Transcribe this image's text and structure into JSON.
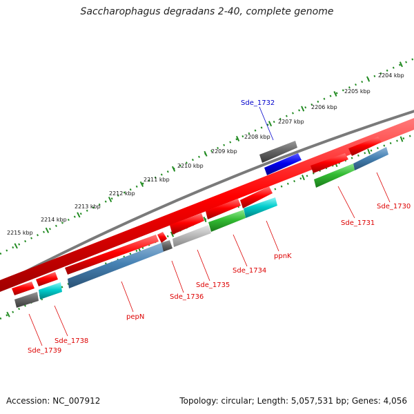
{
  "title": "Saccharophagus degradans 2-40, complete genome",
  "accession": "Accession: NC_007912",
  "topology": "Topology: circular; Length: 5,057,531 bp; Genes: 4,056",
  "kbp_labels": [
    "2204 kbp",
    "2205 kbp",
    "2206 kbp",
    "2207 kbp",
    "2208 kbp",
    "2209 kbp",
    "2210 kbp",
    "2211 kbp",
    "2212 kbp",
    "2213 kbp",
    "2214 kbp",
    "2215 kbp"
  ],
  "gene_labels": {
    "sde1732": "Sde_1732",
    "sde1730": "Sde_1730",
    "sde1731": "Sde_1731",
    "ppnk": "ppnK",
    "sde1734": "Sde_1734",
    "sde1735": "Sde_1735",
    "sde1736": "Sde_1736",
    "pepn": "pepN",
    "sde1738": "Sde_1738",
    "sde1739": "Sde_1739"
  },
  "colors": {
    "cds_red": "#ff0000",
    "highlight_blue": "#0000ee",
    "gray": "#666666",
    "steel_blue": "#4682b4",
    "green": "#33bb33",
    "cyan": "#00cccc",
    "light_gray": "#bbbbbb",
    "tick_green": "#228b22",
    "label_red": "#dd0000",
    "label_blue": "#0000cc"
  }
}
